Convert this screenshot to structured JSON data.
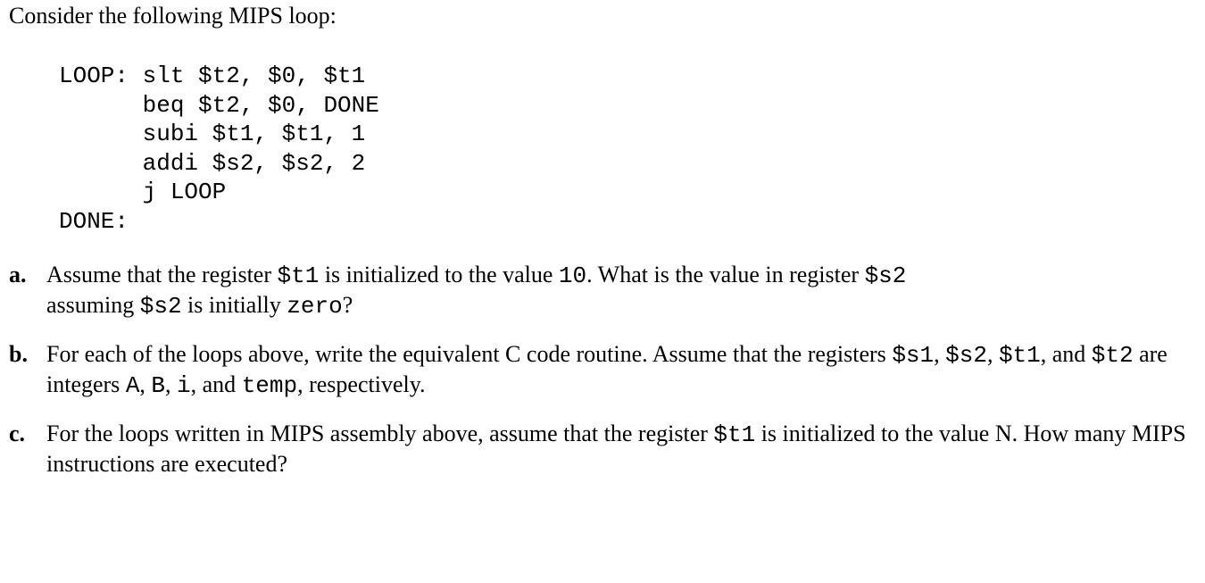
{
  "intro": "Consider the following MIPS loop:",
  "code": {
    "l1": "LOOP: slt $t2, $0, $t1",
    "l2": "      beq $t2, $0, DONE",
    "l3": "      subi $t1, $t1, 1",
    "l4": "      addi $s2, $s2, 2",
    "l5": "      j LOOP",
    "l6": "DONE:"
  },
  "qa": {
    "label": "a.",
    "p1": "Assume that the register ",
    "r1": "$t1",
    "p2": " is initialized to the value ",
    "v1": "10",
    "p3": ". What is the value in register ",
    "r2": "$s2",
    "p4": "assuming ",
    "r3": "$s2",
    "p5": " is initially ",
    "v2": "zero",
    "p6": "?"
  },
  "qb": {
    "label": "b.",
    "p1": "For each of the loops above, write the equivalent C code routine. Assume that the registers ",
    "r1": "$s1",
    "c1": ", ",
    "r2": "$s2",
    "c2": ", ",
    "r3": "$t1",
    "c3": ", and ",
    "r4": "$t2",
    "p2": " are integers ",
    "v1": "A",
    "c4": ", ",
    "v2": "B",
    "c5": ", ",
    "v3": "i",
    "c6": ", and ",
    "v4": "temp",
    "p3": ", respectively."
  },
  "qc": {
    "label": "c.",
    "p1": "For the loops written in MIPS assembly above, assume that the register ",
    "r1": "$t1",
    "p2": " is initialized to the value ",
    "v1": "N",
    "p3": ". How many MIPS instructions are executed?"
  },
  "style": {
    "body_font": "Times New Roman",
    "mono_font": "Courier New",
    "font_size_pt": 20,
    "text_color": "#000000",
    "background_color": "#ffffff"
  }
}
